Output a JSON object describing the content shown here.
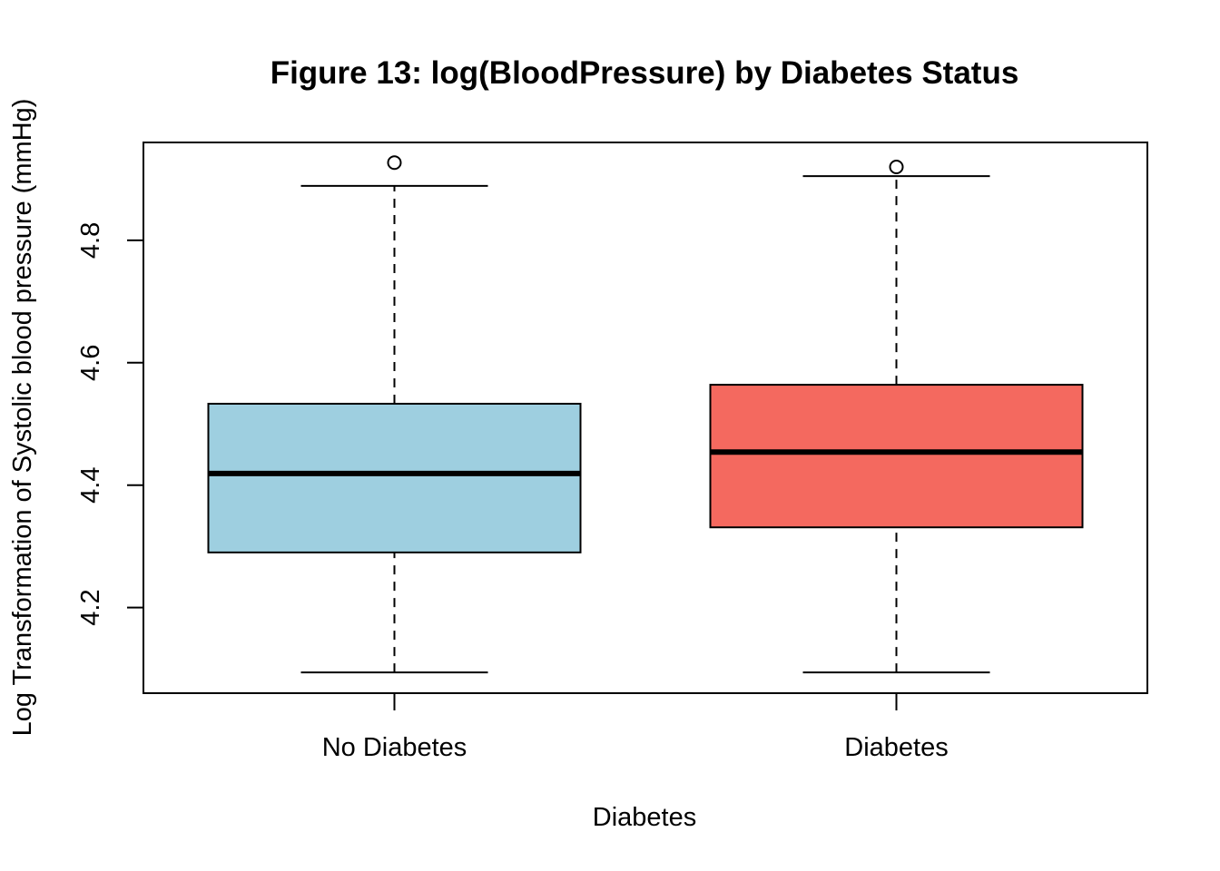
{
  "chart_data": {
    "type": "boxplot",
    "title": "Figure 13: log(BloodPressure) by Diabetes Status",
    "xlabel": "Diabetes",
    "ylabel": "Log Transformation of Systolic blood pressure (mmHg)",
    "ylim": [
      4.06,
      4.96
    ],
    "yticks": [
      "4.2",
      "4.4",
      "4.6",
      "4.8"
    ],
    "categories": [
      "No Diabetes",
      "Diabetes"
    ],
    "colors": [
      "#9ecfe0",
      "#f4695f"
    ],
    "boxes": [
      {
        "category": "No Diabetes",
        "whisker_low": 4.094,
        "q1": 4.29,
        "median": 4.419,
        "q3": 4.533,
        "whisker_high": 4.889,
        "outliers": [
          4.927
        ]
      },
      {
        "category": "Diabetes",
        "whisker_low": 4.094,
        "q1": 4.331,
        "median": 4.454,
        "q3": 4.564,
        "whisker_high": 4.905,
        "outliers": [
          4.92
        ]
      }
    ],
    "grid": false,
    "legend": "none"
  }
}
